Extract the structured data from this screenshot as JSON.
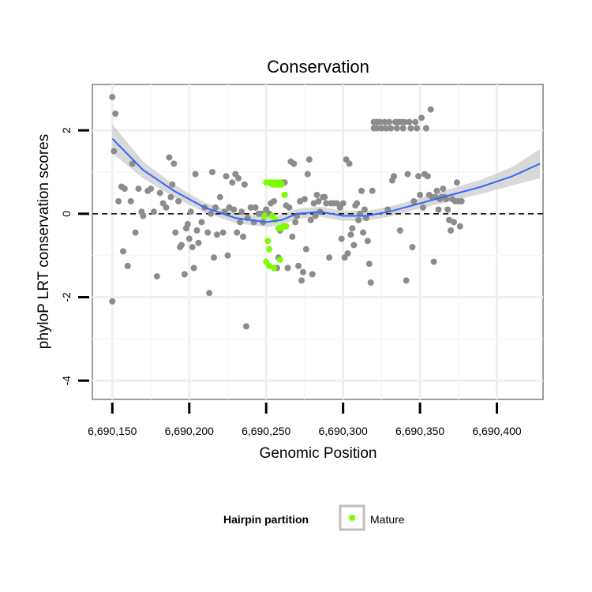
{
  "chart_data": {
    "type": "scatter",
    "title": "Conservation",
    "xlabel": "Genomic Position",
    "ylabel": "phyloP LRT conservation scores",
    "xlim": [
      6690137,
      6690430
    ],
    "ylim": [
      -4.45,
      3.1
    ],
    "x_ticks": [
      6690150,
      6690200,
      6690250,
      6690300,
      6690350,
      6690400
    ],
    "x_tick_labels": [
      "6,690,150",
      "6,690,200",
      "6,690,250",
      "6,690,300",
      "6,690,350",
      "6,690,400"
    ],
    "y_ticks": [
      -4,
      -2,
      0,
      2
    ],
    "y_tick_labels": [
      "-4",
      "-2",
      "0",
      "2"
    ],
    "grid": true,
    "reference_line": {
      "y": 0,
      "style": "dashed"
    },
    "legend": {
      "title": "Hairpin partition",
      "position": "bottom",
      "entries": [
        {
          "label": "Mature",
          "color": "#7cfc00"
        }
      ]
    },
    "colors": {
      "other": "#8c8c8c",
      "mature": "#7cfc00",
      "smooth": "#3366ff",
      "band": "#cccccc"
    },
    "series": [
      {
        "role": "other",
        "points": [
          [
            6690150,
            2.8
          ],
          [
            6690151,
            1.5
          ],
          [
            6690152,
            2.4
          ],
          [
            6690150,
            -2.1
          ],
          [
            6690154,
            0.3
          ],
          [
            6690156,
            0.65
          ],
          [
            6690157,
            -0.9
          ],
          [
            6690158,
            0.6
          ],
          [
            6690160,
            -1.25
          ],
          [
            6690162,
            0.3
          ],
          [
            6690163,
            1.2
          ],
          [
            6690165,
            -0.45
          ],
          [
            6690167,
            0.6
          ],
          [
            6690169,
            0.05
          ],
          [
            6690170,
            -0.05
          ],
          [
            6690173,
            0.55
          ],
          [
            6690175,
            0.6
          ],
          [
            6690177,
            0.05
          ],
          [
            6690179,
            -1.5
          ],
          [
            6690181,
            0.5
          ],
          [
            6690183,
            0.25
          ],
          [
            6690185,
            0.15
          ],
          [
            6690187,
            1.35
          ],
          [
            6690188,
            0.4
          ],
          [
            6690189,
            0.7
          ],
          [
            6690190,
            1.2
          ],
          [
            6690191,
            -0.45
          ],
          [
            6690193,
            0.3
          ],
          [
            6690194,
            -0.8
          ],
          [
            6690195,
            -0.75
          ],
          [
            6690197,
            -1.45
          ],
          [
            6690198,
            -0.35
          ],
          [
            6690199,
            -0.25
          ],
          [
            6690200,
            -0.6
          ],
          [
            6690201,
            0.05
          ],
          [
            6690202,
            -0.8
          ],
          [
            6690203,
            -1.3
          ],
          [
            6690204,
            0.95
          ],
          [
            6690205,
            -0.4
          ],
          [
            6690206,
            -0.7
          ],
          [
            6690208,
            -0.2
          ],
          [
            6690210,
            0.15
          ],
          [
            6690212,
            -0.45
          ],
          [
            6690213,
            -1.9
          ],
          [
            6690214,
            0.0
          ],
          [
            6690215,
            1.0
          ],
          [
            6690216,
            -1.05
          ],
          [
            6690217,
            0.15
          ],
          [
            6690218,
            -0.5
          ],
          [
            6690220,
            0.4
          ],
          [
            6690222,
            -0.45
          ],
          [
            6690223,
            0.05
          ],
          [
            6690224,
            0.9
          ],
          [
            6690225,
            -1.0
          ],
          [
            6690226,
            0.15
          ],
          [
            6690228,
            0.75
          ],
          [
            6690229,
            0.1
          ],
          [
            6690230,
            0.95
          ],
          [
            6690231,
            -0.45
          ],
          [
            6690232,
            0.85
          ],
          [
            6690233,
            -0.2
          ],
          [
            6690234,
            0.05
          ],
          [
            6690235,
            -0.55
          ],
          [
            6690237,
            -2.7
          ],
          [
            6690236,
            0.7
          ],
          [
            6690238,
            -0.1
          ],
          [
            6690240,
            0.15
          ],
          [
            6690242,
            -0.2
          ],
          [
            6690243,
            0.15
          ],
          [
            6690245,
            0.0
          ],
          [
            6690247,
            0.0
          ],
          [
            6690248,
            -0.2
          ],
          [
            6690250,
            0.1
          ],
          [
            6690252,
            0.0
          ],
          [
            6690253,
            0.25
          ],
          [
            6690255,
            0.3
          ],
          [
            6690257,
            -1.3
          ],
          [
            6690258,
            -1.05
          ],
          [
            6690259,
            -0.4
          ],
          [
            6690260,
            0.75
          ],
          [
            6690262,
            0.75
          ],
          [
            6690263,
            0.2
          ],
          [
            6690264,
            -1.3
          ],
          [
            6690265,
            0.15
          ],
          [
            6690266,
            1.25
          ],
          [
            6690267,
            -0.55
          ],
          [
            6690268,
            1.2
          ],
          [
            6690269,
            -0.2
          ],
          [
            6690270,
            -0.05
          ],
          [
            6690271,
            -1.25
          ],
          [
            6690272,
            0.3
          ],
          [
            6690273,
            -1.6
          ],
          [
            6690274,
            -1.4
          ],
          [
            6690275,
            0.35
          ],
          [
            6690276,
            -0.85
          ],
          [
            6690277,
            0.95
          ],
          [
            6690278,
            1.3
          ],
          [
            6690279,
            -0.15
          ],
          [
            6690280,
            -1.45
          ],
          [
            6690281,
            0.25
          ],
          [
            6690282,
            -0.05
          ],
          [
            6690283,
            0.45
          ],
          [
            6690284,
            0.3
          ],
          [
            6690285,
            0.05
          ],
          [
            6690287,
            0.4
          ],
          [
            6690288,
            0.4
          ],
          [
            6690289,
            0.25
          ],
          [
            6690291,
            -1.05
          ],
          [
            6690292,
            0.25
          ],
          [
            6690294,
            0.25
          ],
          [
            6690296,
            0.25
          ],
          [
            6690298,
            0.15
          ],
          [
            6690299,
            -0.6
          ],
          [
            6690300,
            0.25
          ],
          [
            6690301,
            -1.05
          ],
          [
            6690302,
            1.3
          ],
          [
            6690303,
            -0.95
          ],
          [
            6690304,
            1.2
          ],
          [
            6690305,
            -0.5
          ],
          [
            6690306,
            -0.35
          ],
          [
            6690307,
            -0.75
          ],
          [
            6690308,
            0.2
          ],
          [
            6690309,
            0.25
          ],
          [
            6690310,
            -0.15
          ],
          [
            6690311,
            0.0
          ],
          [
            6690312,
            0.55
          ],
          [
            6690313,
            -0.45
          ],
          [
            6690314,
            0.1
          ],
          [
            6690315,
            -0.1
          ],
          [
            6690316,
            -0.65
          ],
          [
            6690317,
            -1.2
          ],
          [
            6690318,
            -1.65
          ],
          [
            6690319,
            0.55
          ],
          [
            6690320,
            2.2
          ],
          [
            6690320,
            2.05
          ],
          [
            6690322,
            2.2
          ],
          [
            6690322,
            2.05
          ],
          [
            6690324,
            2.2
          ],
          [
            6690325,
            2.05
          ],
          [
            6690327,
            2.2
          ],
          [
            6690328,
            2.05
          ],
          [
            6690329,
            0.1
          ],
          [
            6690330,
            2.2
          ],
          [
            6690331,
            2.05
          ],
          [
            6690332,
            0.8
          ],
          [
            6690333,
            0.9
          ],
          [
            6690334,
            2.2
          ],
          [
            6690335,
            2.05
          ],
          [
            6690336,
            2.2
          ],
          [
            6690337,
            -0.4
          ],
          [
            6690338,
            2.2
          ],
          [
            6690339,
            2.05
          ],
          [
            6690340,
            2.2
          ],
          [
            6690341,
            -1.6
          ],
          [
            6690342,
            0.95
          ],
          [
            6690343,
            2.2
          ],
          [
            6690344,
            2.05
          ],
          [
            6690345,
            -0.8
          ],
          [
            6690346,
            0.3
          ],
          [
            6690347,
            2.2
          ],
          [
            6690348,
            2.05
          ],
          [
            6690349,
            0.9
          ],
          [
            6690350,
            0.45
          ],
          [
            6690351,
            2.3
          ],
          [
            6690352,
            0.15
          ],
          [
            6690353,
            0.95
          ],
          [
            6690354,
            2.05
          ],
          [
            6690355,
            0.9
          ],
          [
            6690356,
            0.45
          ],
          [
            6690357,
            2.5
          ],
          [
            6690358,
            0.4
          ],
          [
            6690359,
            -1.15
          ],
          [
            6690360,
            0.4
          ],
          [
            6690361,
            0.55
          ],
          [
            6690362,
            0.1
          ],
          [
            6690363,
            0.35
          ],
          [
            6690364,
            0.4
          ],
          [
            6690365,
            0.6
          ],
          [
            6690366,
            0.4
          ],
          [
            6690367,
            0.35
          ],
          [
            6690368,
            0.1
          ],
          [
            6690369,
            -0.15
          ],
          [
            6690370,
            -0.4
          ],
          [
            6690371,
            0.35
          ],
          [
            6690372,
            -0.2
          ],
          [
            6690373,
            0.3
          ],
          [
            6690374,
            0.75
          ],
          [
            6690375,
            0.3
          ],
          [
            6690376,
            -0.3
          ],
          [
            6690377,
            0.3
          ]
        ]
      },
      {
        "role": "mature",
        "points": [
          [
            6690250,
            0.75
          ],
          [
            6690252,
            0.75
          ],
          [
            6690253,
            0.75
          ],
          [
            6690254,
            0.7
          ],
          [
            6690255,
            0.75
          ],
          [
            6690256,
            0.7
          ],
          [
            6690257,
            0.75
          ],
          [
            6690258,
            0.7
          ],
          [
            6690259,
            0.75
          ],
          [
            6690260,
            0.7
          ],
          [
            6690262,
            0.45
          ],
          [
            6690249,
            -0.05
          ],
          [
            6690251,
            -0.65
          ],
          [
            6690252,
            -0.85
          ],
          [
            6690250,
            -1.15
          ],
          [
            6690252,
            -1.25
          ],
          [
            6690254,
            -0.05
          ],
          [
            6690256,
            -0.15
          ],
          [
            6690258,
            -0.35
          ],
          [
            6690260,
            -0.35
          ],
          [
            6690261,
            -0.3
          ],
          [
            6690263,
            -0.3
          ],
          [
            6690259,
            -1.1
          ],
          [
            6690255,
            -1.3
          ]
        ]
      }
    ],
    "smooth": {
      "x": [
        6690150,
        6690170,
        6690190,
        6690210,
        6690230,
        6690250,
        6690260,
        6690270,
        6690285,
        6690300,
        6690315,
        6690330,
        6690350,
        6690370,
        6690390,
        6690410,
        6690428
      ],
      "y": [
        1.8,
        1.05,
        0.55,
        0.15,
        -0.1,
        -0.2,
        -0.15,
        0.0,
        0.05,
        -0.05,
        -0.05,
        0.05,
        0.25,
        0.45,
        0.65,
        0.9,
        1.2
      ],
      "se": [
        0.35,
        0.2,
        0.15,
        0.12,
        0.12,
        0.12,
        0.12,
        0.12,
        0.12,
        0.12,
        0.12,
        0.12,
        0.12,
        0.15,
        0.17,
        0.22,
        0.35
      ]
    }
  }
}
